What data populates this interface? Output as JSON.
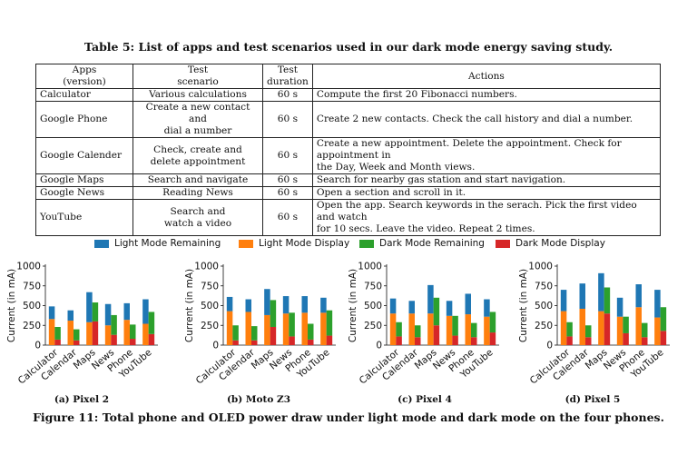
{
  "table": {
    "title": "Table 5: List of apps and test scenarios used in our dark mode energy saving study.",
    "headers": [
      "Apps\n(version)",
      "Test\nscenario",
      "Test\nduration",
      "Actions"
    ],
    "rows": [
      [
        "Calculator",
        "Various calculations",
        "60 s",
        "Compute the first 20 Fibonacci numbers."
      ],
      [
        "Google Phone",
        "Create a new contact and\ndial a number",
        "60 s",
        "Create 2 new contacts. Check the call history and dial a number."
      ],
      [
        "Google Calender",
        "Check, create and\ndelete appointment",
        "60 s",
        "Create a new appointment. Delete the appointment. Check for appointment in\nthe Day, Week and Month views."
      ],
      [
        "Google Maps",
        "Search and navigate",
        "60 s",
        "Search for nearby gas station and start navigation."
      ],
      [
        "Google News",
        "Reading News",
        "60 s",
        "Open a section and scroll in it."
      ],
      [
        "YouTube",
        "Search and\nwatch a video",
        "60 s",
        "Open the app. Search keywords in the serach. Pick the first video and watch\nfor 10 secs. Leave the video. Repeat 2 times."
      ]
    ]
  },
  "figure": {
    "caption": "Figure 11: Total phone and OLED power draw under light mode and dark mode on the four phones.",
    "legend": [
      {
        "label": "Light Mode Remaining",
        "color": "#1f77b4"
      },
      {
        "label": "Light Mode Display",
        "color": "#ff7f0e"
      },
      {
        "label": "Dark Mode Remaining",
        "color": "#2ca02c"
      },
      {
        "label": "Dark Mode Display",
        "color": "#d62728"
      }
    ]
  },
  "chart_data": [
    {
      "type": "bar",
      "title": "(a) Pixel 2",
      "ylabel": "Current (in mA)",
      "ylim": [
        0,
        1000
      ],
      "yticks": [
        0,
        250,
        500,
        750,
        1000
      ],
      "categories": [
        "Calculator",
        "Calendar",
        "Maps",
        "News",
        "Phone",
        "YouTube"
      ],
      "series": [
        {
          "name": "Light Mode Display",
          "values": [
            330,
            310,
            290,
            250,
            320,
            270
          ]
        },
        {
          "name": "Light Mode Remaining",
          "values": [
            160,
            130,
            380,
            270,
            210,
            310
          ]
        },
        {
          "name": "Dark Mode Display",
          "values": [
            70,
            60,
            300,
            130,
            80,
            140
          ]
        },
        {
          "name": "Dark Mode Remaining",
          "values": [
            160,
            140,
            240,
            250,
            180,
            280
          ]
        }
      ]
    },
    {
      "type": "bar",
      "title": "(b) Moto Z3",
      "ylabel": "Current (in mA)",
      "ylim": [
        0,
        1000
      ],
      "yticks": [
        0,
        250,
        500,
        750,
        1000
      ],
      "categories": [
        "Calculator",
        "Calendar",
        "Maps",
        "News",
        "Phone",
        "YouTube"
      ],
      "series": [
        {
          "name": "Light Mode Display",
          "values": [
            430,
            420,
            380,
            400,
            410,
            410
          ]
        },
        {
          "name": "Light Mode Remaining",
          "values": [
            180,
            160,
            330,
            220,
            210,
            190
          ]
        },
        {
          "name": "Dark Mode Display",
          "values": [
            60,
            60,
            230,
            110,
            70,
            120
          ]
        },
        {
          "name": "Dark Mode Remaining",
          "values": [
            190,
            180,
            340,
            300,
            200,
            320
          ]
        }
      ]
    },
    {
      "type": "bar",
      "title": "(c) Pixel 4",
      "ylabel": "Current (in mA)",
      "ylim": [
        0,
        1000
      ],
      "yticks": [
        0,
        250,
        500,
        750,
        1000
      ],
      "categories": [
        "Calculator",
        "Calendar",
        "Maps",
        "News",
        "Phone",
        "YouTube"
      ],
      "series": [
        {
          "name": "Light Mode Display",
          "values": [
            400,
            400,
            400,
            370,
            390,
            360
          ]
        },
        {
          "name": "Light Mode Remaining",
          "values": [
            190,
            160,
            360,
            190,
            260,
            220
          ]
        },
        {
          "name": "Dark Mode Display",
          "values": [
            110,
            100,
            250,
            120,
            100,
            160
          ]
        },
        {
          "name": "Dark Mode Remaining",
          "values": [
            180,
            150,
            350,
            250,
            180,
            260
          ]
        }
      ]
    },
    {
      "type": "bar",
      "title": "(d) Pixel 5",
      "ylabel": "Current (in mA)",
      "ylim": [
        0,
        1000
      ],
      "yticks": [
        0,
        250,
        500,
        750,
        1000
      ],
      "categories": [
        "Calculator",
        "Calendar",
        "Maps",
        "News",
        "Phone",
        "YouTube"
      ],
      "series": [
        {
          "name": "Light Mode Display",
          "values": [
            430,
            460,
            430,
            360,
            480,
            350
          ]
        },
        {
          "name": "Light Mode Remaining",
          "values": [
            270,
            320,
            480,
            240,
            290,
            350
          ]
        },
        {
          "name": "Dark Mode Display",
          "values": [
            110,
            100,
            400,
            150,
            100,
            180
          ]
        },
        {
          "name": "Dark Mode Remaining",
          "values": [
            180,
            150,
            330,
            210,
            180,
            300
          ]
        }
      ]
    }
  ]
}
